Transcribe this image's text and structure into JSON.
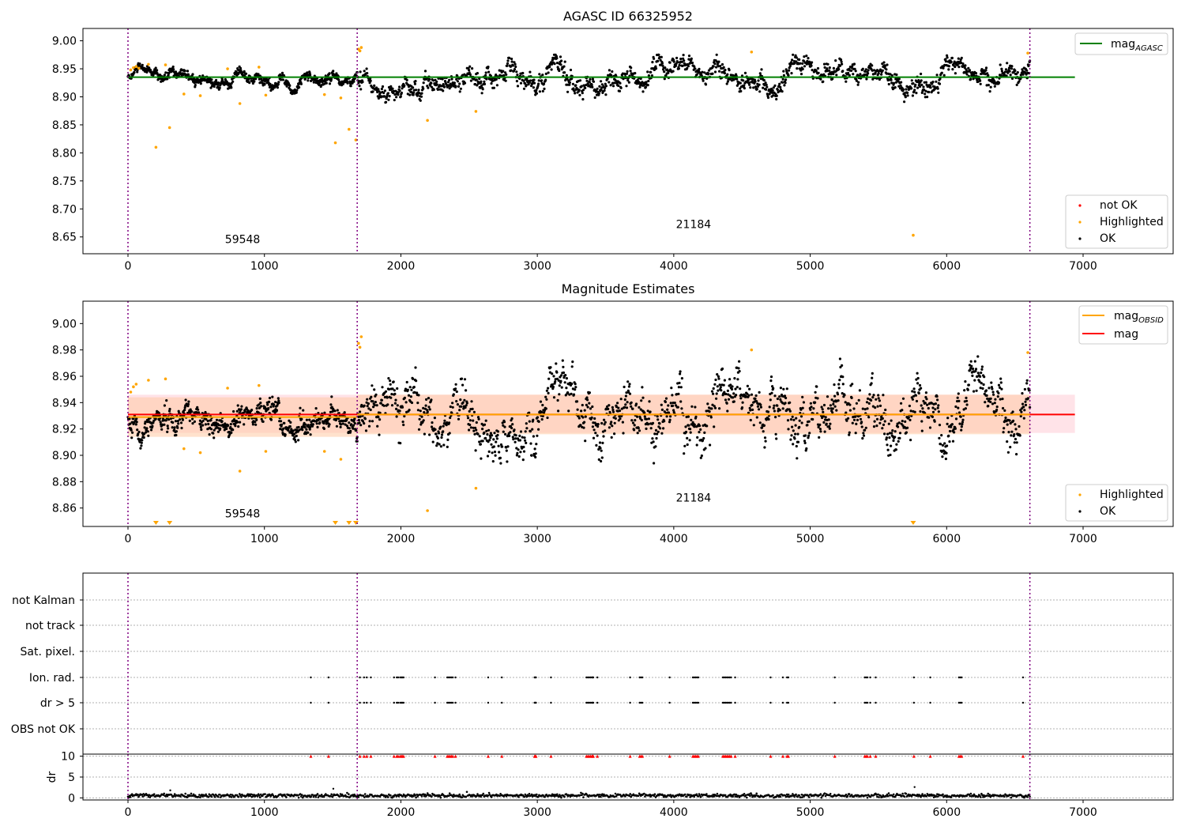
{
  "colors": {
    "ok": "#000000",
    "highlighted": "#FFA500",
    "not_ok": "#FF0000",
    "agasc_line": "#008000",
    "mag_line": "#FF0000",
    "obsid_line": "#FFA500",
    "boundary": "#800080",
    "band_pink": "#FFC0CB",
    "band_orange": "#FFCBA4"
  },
  "chart_data": [
    {
      "type": "scatter",
      "title": "AGASC ID 66325952",
      "xlim": [
        -330,
        7660
      ],
      "ylim": [
        8.62,
        9.022
      ],
      "xticks": [
        "0",
        "1000",
        "2000",
        "3000",
        "4000",
        "5000",
        "6000",
        "7000"
      ],
      "yticks": [
        "8.65",
        "8.70",
        "8.75",
        "8.80",
        "8.85",
        "8.90",
        "8.95",
        "9.00"
      ],
      "boundaries": [
        0,
        1680,
        6610
      ],
      "mag_agasc": 8.935,
      "mag_agasc_x": [
        0,
        6940
      ],
      "annotations": [
        {
          "text": "59548",
          "x": 840,
          "y": 8.639
        },
        {
          "text": "21184",
          "x": 4145,
          "y": 8.666
        }
      ],
      "legend_top": [
        "mag_AGASC"
      ],
      "legend_bottom": [
        "not OK",
        "Highlighted",
        "OK"
      ],
      "segments": [
        {
          "x0": 0,
          "x1": 1680,
          "level": 8.933,
          "spread": 0.007,
          "count": 620
        },
        {
          "x0": 1680,
          "x1": 6610,
          "level": 8.933,
          "spread": 0.014,
          "count": 1500
        }
      ],
      "highlighted": [
        [
          20,
          8.948
        ],
        [
          40,
          8.952
        ],
        [
          60,
          8.954
        ],
        [
          80,
          8.951
        ],
        [
          150,
          8.958
        ],
        [
          205,
          8.81
        ],
        [
          275,
          8.957
        ],
        [
          305,
          8.845
        ],
        [
          410,
          8.905
        ],
        [
          530,
          8.902
        ],
        [
          730,
          8.95
        ],
        [
          820,
          8.888
        ],
        [
          960,
          8.953
        ],
        [
          1010,
          8.903
        ],
        [
          1440,
          8.904
        ],
        [
          1520,
          8.818
        ],
        [
          1560,
          8.898
        ],
        [
          1620,
          8.842
        ],
        [
          1670,
          8.823
        ],
        [
          1690,
          8.985
        ],
        [
          1700,
          8.982
        ],
        [
          1710,
          8.988
        ],
        [
          2195,
          8.858
        ],
        [
          2550,
          8.874
        ],
        [
          4570,
          8.98
        ],
        [
          5755,
          8.653
        ],
        [
          6595,
          8.978
        ]
      ]
    },
    {
      "type": "scatter",
      "title": "Magnitude Estimates",
      "xlim": [
        -330,
        7660
      ],
      "ylim": [
        8.846,
        9.017
      ],
      "xticks": [
        "0",
        "1000",
        "2000",
        "3000",
        "4000",
        "5000",
        "6000",
        "7000"
      ],
      "yticks": [
        "8.86",
        "8.88",
        "8.90",
        "8.92",
        "8.94",
        "8.96",
        "8.98",
        "9.00"
      ],
      "boundaries": [
        0,
        1680,
        6610
      ],
      "mag": 8.931,
      "mag_band": [
        8.917,
        8.946
      ],
      "mag_x": [
        0,
        6940
      ],
      "mag_obsid": [
        {
          "x0": 0,
          "x1": 1680,
          "value": 8.929
        },
        {
          "x0": 1680,
          "x1": 6610,
          "value": 8.931
        }
      ],
      "annotations": [
        {
          "text": "59548",
          "x": 840,
          "y": 8.853
        },
        {
          "text": "21184",
          "x": 4145,
          "y": 8.865
        }
      ],
      "legend_top": [
        "mag_OBSID",
        "mag"
      ],
      "legend_bottom": [
        "Highlighted",
        "OK"
      ],
      "segments": [
        {
          "x0": 0,
          "x1": 1680,
          "level": 8.928,
          "spread": 0.007,
          "count": 620
        },
        {
          "x0": 1680,
          "x1": 6610,
          "level": 8.932,
          "spread": 0.014,
          "count": 1500
        }
      ],
      "highlighted": [
        [
          20,
          8.948
        ],
        [
          40,
          8.952
        ],
        [
          60,
          8.954
        ],
        [
          150,
          8.957
        ],
        [
          275,
          8.958
        ],
        [
          410,
          8.905
        ],
        [
          530,
          8.902
        ],
        [
          730,
          8.951
        ],
        [
          820,
          8.888
        ],
        [
          960,
          8.953
        ],
        [
          1010,
          8.903
        ],
        [
          1440,
          8.903
        ],
        [
          1560,
          8.897
        ],
        [
          1690,
          8.985
        ],
        [
          1700,
          8.982
        ],
        [
          1710,
          8.99
        ],
        [
          2195,
          8.858
        ],
        [
          2550,
          8.875
        ],
        [
          4570,
          8.98
        ],
        [
          6595,
          8.978
        ]
      ],
      "offscale_low": [
        205,
        305,
        1520,
        1620,
        1670,
        5755
      ]
    },
    {
      "type": "scatter",
      "xlim": [
        -330,
        7660
      ],
      "xticks": [
        "0",
        "1000",
        "2000",
        "3000",
        "4000",
        "5000",
        "6000",
        "7000"
      ],
      "boundaries": [
        0,
        1680,
        6610
      ],
      "flag_rows": [
        "not Kalman",
        "not track",
        "Sat. pixel.",
        "Ion. rad.",
        "dr > 5",
        "OBS not OK"
      ],
      "flag_x": [
        1340,
        1470,
        1700,
        1730,
        1750,
        1780,
        1950,
        1970,
        1980,
        1995,
        2005,
        2010,
        2020,
        2250,
        2340,
        2350,
        2360,
        2370,
        2380,
        2400,
        2640,
        2740,
        2980,
        2985,
        2990,
        3100,
        3360,
        3370,
        3380,
        3390,
        3400,
        3405,
        3410,
        3440,
        3680,
        3750,
        3760,
        3770,
        3970,
        4140,
        4150,
        4160,
        4170,
        4180,
        4360,
        4370,
        4380,
        4390,
        4400,
        4410,
        4420,
        4450,
        4710,
        4800,
        4830,
        4840,
        5180,
        5400,
        5410,
        5420,
        5440,
        5480,
        5760,
        5880,
        6090,
        6100,
        6110,
        6560
      ],
      "dr_ylabel": "dr",
      "dr_ylim": [
        -0.5,
        10.5
      ],
      "dr_yticks": [
        "0",
        "5",
        "10"
      ],
      "dr_clip": 10,
      "dr_outliers": [
        [
          310,
          1.8
        ],
        [
          1505,
          2.2
        ],
        [
          5765,
          2.6
        ]
      ]
    }
  ]
}
